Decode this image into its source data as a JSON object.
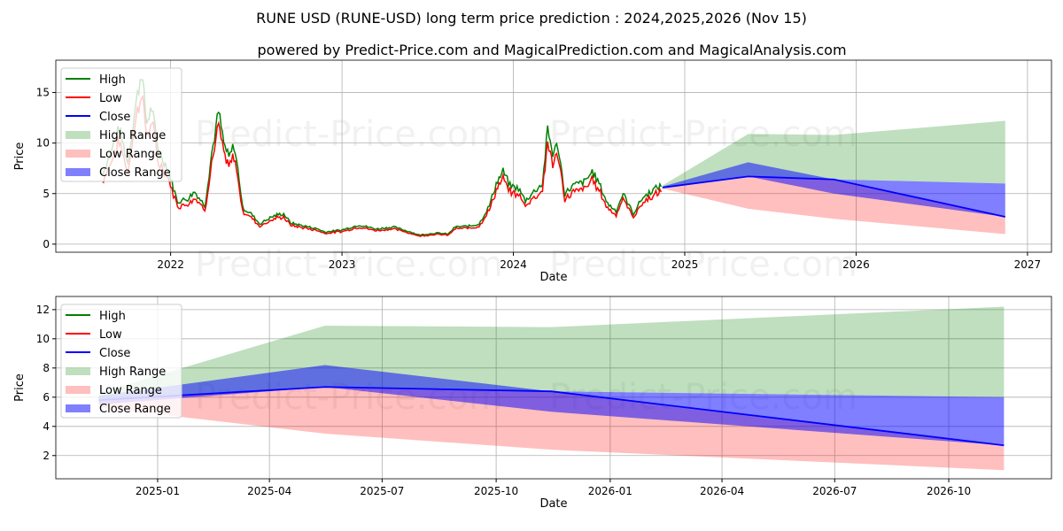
{
  "chart_data": [
    {
      "type": "line",
      "title": "RUNE USD (RUNE-USD) long term price prediction : 2024,2025,2026 (Nov 15)",
      "subtitle": "powered by Predict-Price.com and MagicalPrediction.com and MagicalAnalysis.com",
      "xlabel": "Date",
      "ylabel": "Price",
      "xlim": [
        2021.33,
        2027.14
      ],
      "ylim": [
        -0.8,
        18.2
      ],
      "xticks": [
        {
          "v": 2022,
          "label": "2022"
        },
        {
          "v": 2023,
          "label": "2023"
        },
        {
          "v": 2024,
          "label": "2024"
        },
        {
          "v": 2025,
          "label": "2025"
        },
        {
          "v": 2026,
          "label": "2026"
        },
        {
          "v": 2027,
          "label": "2027"
        }
      ],
      "yticks": [
        {
          "v": 0,
          "label": "0"
        },
        {
          "v": 5,
          "label": "5"
        },
        {
          "v": 10,
          "label": "10"
        },
        {
          "v": 15,
          "label": "15"
        }
      ],
      "grid": true,
      "legend_position": "top-left",
      "history_high": [
        [
          2021.6,
          7
        ],
        [
          2021.65,
          9
        ],
        [
          2021.7,
          11.5
        ],
        [
          2021.75,
          8
        ],
        [
          2021.79,
          13
        ],
        [
          2021.83,
          17.2
        ],
        [
          2021.86,
          12
        ],
        [
          2021.89,
          13.5
        ],
        [
          2021.93,
          9
        ],
        [
          2021.97,
          8
        ],
        [
          2022.0,
          6.5
        ],
        [
          2022.04,
          4.2
        ],
        [
          2022.1,
          4.5
        ],
        [
          2022.14,
          5.2
        ],
        [
          2022.2,
          3.8
        ],
        [
          2022.24,
          9
        ],
        [
          2022.28,
          13.1
        ],
        [
          2022.31,
          10
        ],
        [
          2022.34,
          8.5
        ],
        [
          2022.37,
          9.8
        ],
        [
          2022.4,
          6.5
        ],
        [
          2022.42,
          3.6
        ],
        [
          2022.47,
          3.0
        ],
        [
          2022.52,
          2.0
        ],
        [
          2022.58,
          2.6
        ],
        [
          2022.62,
          2.9
        ],
        [
          2022.66,
          3.0
        ],
        [
          2022.7,
          2.1
        ],
        [
          2022.78,
          1.8
        ],
        [
          2022.86,
          1.5
        ],
        [
          2022.9,
          1.2
        ],
        [
          2022.95,
          1.3
        ],
        [
          2023.0,
          1.4
        ],
        [
          2023.1,
          1.9
        ],
        [
          2023.2,
          1.5
        ],
        [
          2023.3,
          1.7
        ],
        [
          2023.4,
          1.2
        ],
        [
          2023.45,
          0.9
        ],
        [
          2023.55,
          1.1
        ],
        [
          2023.62,
          1.0
        ],
        [
          2023.66,
          1.7
        ],
        [
          2023.75,
          1.8
        ],
        [
          2023.8,
          2.0
        ],
        [
          2023.86,
          3.8
        ],
        [
          2023.9,
          6.0
        ],
        [
          2023.94,
          7.2
        ],
        [
          2023.98,
          5.8
        ],
        [
          2024.03,
          5.5
        ],
        [
          2024.07,
          4.3
        ],
        [
          2024.12,
          5.2
        ],
        [
          2024.17,
          6.0
        ],
        [
          2024.2,
          11.3
        ],
        [
          2024.23,
          9.0
        ],
        [
          2024.26,
          9.8
        ],
        [
          2024.3,
          5.0
        ],
        [
          2024.35,
          5.8
        ],
        [
          2024.42,
          6.2
        ],
        [
          2024.46,
          7.2
        ],
        [
          2024.5,
          6.0
        ],
        [
          2024.55,
          4.0
        ],
        [
          2024.6,
          3.3
        ],
        [
          2024.64,
          5.0
        ],
        [
          2024.7,
          3.0
        ],
        [
          2024.75,
          4.5
        ],
        [
          2024.8,
          5.2
        ],
        [
          2024.84,
          5.6
        ],
        [
          2024.87,
          5.8
        ]
      ],
      "series": [
        {
          "name": "High",
          "color": "#008000"
        },
        {
          "name": "Low",
          "color": "#ff0000"
        },
        {
          "name": "Close",
          "color": "#0000ff",
          "x": [
            2024.87,
            2025.37,
            2025.87,
            2026.87
          ],
          "values": [
            5.6,
            6.7,
            6.4,
            2.7
          ]
        },
        {
          "name": "High Range",
          "color": "#008000",
          "x": [
            2024.87,
            2025.37,
            2025.87,
            2026.87
          ],
          "lower": [
            5.6,
            6.7,
            6.4,
            6.0
          ],
          "upper": [
            5.8,
            10.9,
            10.8,
            12.2
          ]
        },
        {
          "name": "Low Range",
          "color": "#ff0000",
          "x": [
            2024.87,
            2025.37,
            2025.87,
            2026.87
          ],
          "lower": [
            5.5,
            3.5,
            2.5,
            1.0
          ],
          "upper": [
            5.6,
            6.7,
            6.4,
            2.7
          ]
        },
        {
          "name": "Close Range",
          "color": "#0000ff",
          "x": [
            2024.87,
            2025.37,
            2025.87,
            2026.87
          ],
          "lower": [
            5.5,
            6.7,
            5.0,
            2.7
          ],
          "upper": [
            5.7,
            8.1,
            6.4,
            6.0
          ]
        }
      ],
      "watermark": "Predict-Price.com"
    },
    {
      "type": "line",
      "xlabel": "Date",
      "ylabel": "Price",
      "xlim": [
        2024.775,
        2026.975
      ],
      "ylim": [
        0.41,
        12.9
      ],
      "xticks": [
        {
          "v": 2025.0,
          "label": "2025-01"
        },
        {
          "v": 2025.247,
          "label": "2025-04"
        },
        {
          "v": 2025.496,
          "label": "2025-07"
        },
        {
          "v": 2025.748,
          "label": "2025-10"
        },
        {
          "v": 2026.0,
          "label": "2026-01"
        },
        {
          "v": 2026.247,
          "label": "2026-04"
        },
        {
          "v": 2026.496,
          "label": "2026-07"
        },
        {
          "v": 2026.748,
          "label": "2026-10"
        }
      ],
      "yticks": [
        {
          "v": 2,
          "label": "2"
        },
        {
          "v": 4,
          "label": "4"
        },
        {
          "v": 6,
          "label": "6"
        },
        {
          "v": 8,
          "label": "8"
        },
        {
          "v": 10,
          "label": "10"
        },
        {
          "v": 12,
          "label": "12"
        }
      ],
      "grid": true,
      "legend_position": "top-left",
      "series": [
        {
          "name": "High",
          "color": "#008000"
        },
        {
          "name": "Low",
          "color": "#ff0000"
        },
        {
          "name": "Close",
          "color": "#0000ff",
          "x": [
            2024.87,
            2025.37,
            2025.87,
            2026.87
          ],
          "values": [
            5.8,
            6.7,
            6.4,
            2.7
          ]
        },
        {
          "name": "High Range",
          "color": "#008000",
          "x": [
            2024.87,
            2025.37,
            2025.87,
            2026.87
          ],
          "lower": [
            5.8,
            6.7,
            6.4,
            6.0
          ],
          "upper": [
            6.3,
            10.9,
            10.8,
            12.2
          ]
        },
        {
          "name": "Low Range",
          "color": "#ff0000",
          "x": [
            2024.87,
            2025.37,
            2025.87,
            2026.87
          ],
          "lower": [
            5.3,
            3.5,
            2.4,
            1.0
          ],
          "upper": [
            5.8,
            6.7,
            6.4,
            2.7
          ]
        },
        {
          "name": "Close Range",
          "color": "#0000ff",
          "x": [
            2024.87,
            2025.37,
            2025.87,
            2026.87
          ],
          "lower": [
            5.5,
            6.7,
            5.0,
            2.7
          ],
          "upper": [
            6.1,
            8.2,
            6.4,
            6.0
          ]
        }
      ],
      "watermark": "Predict-Price.com"
    }
  ]
}
